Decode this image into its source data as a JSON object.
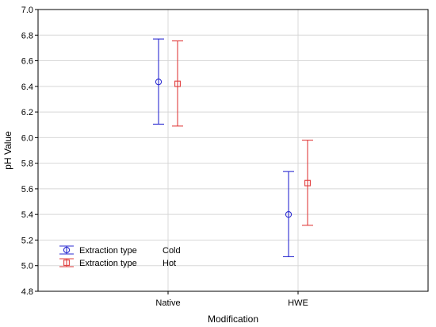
{
  "chart_data": {
    "type": "scatter",
    "subtype": "means-with-error-bars",
    "title": "",
    "xlabel": "Modification",
    "ylabel": "pH Value",
    "categories": [
      "Native",
      "HWE"
    ],
    "ylim": [
      4.8,
      7.0
    ],
    "yticks": [
      "4.8",
      "5.0",
      "5.2",
      "5.4",
      "5.6",
      "5.8",
      "6.0",
      "6.2",
      "6.4",
      "6.6",
      "6.8",
      "7.0"
    ],
    "grid": true,
    "legend_position": "bottom-left",
    "series": [
      {
        "legend_label": "Extraction type",
        "legend_value": "Cold",
        "color": "#2b2bd0",
        "marker": "circle",
        "mean": [
          6.435,
          5.4
        ],
        "lower": [
          6.105,
          5.07
        ],
        "upper": [
          6.77,
          5.735
        ]
      },
      {
        "legend_label": "Extraction type",
        "legend_value": "Hot",
        "color": "#e03c3c",
        "marker": "square",
        "mean": [
          6.42,
          5.645
        ],
        "lower": [
          6.09,
          5.315
        ],
        "upper": [
          6.755,
          5.98
        ]
      }
    ]
  }
}
